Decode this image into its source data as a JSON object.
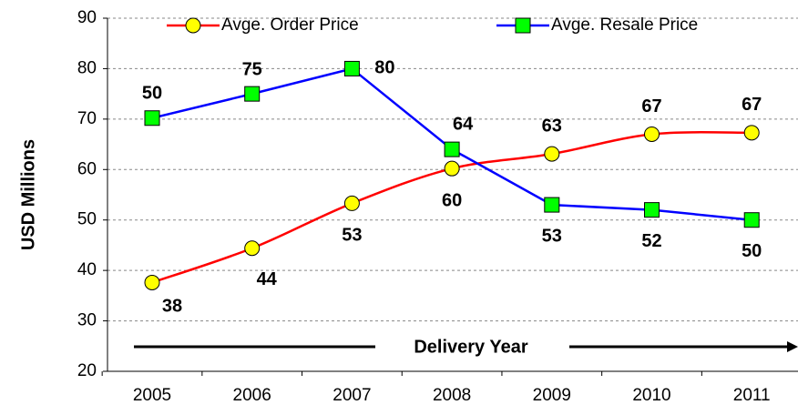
{
  "chart_data": {
    "type": "line",
    "y_label": "USD Millions",
    "x_label": "Delivery Year",
    "categories": [
      "2005",
      "2006",
      "2007",
      "2008",
      "2009",
      "2010",
      "2011"
    ],
    "series": [
      {
        "name": "Avge. Order Price",
        "color": "#ff0000",
        "marker_color": "#ffff00",
        "marker": "circle",
        "smooth": true,
        "values": [
          37.6,
          44.4,
          53.3,
          60.2,
          63.1,
          67.0,
          67.3
        ],
        "value_labels": [
          "38",
          "44",
          "53",
          "60",
          "63",
          "67",
          "67"
        ]
      },
      {
        "name": "Avge. Resale Price",
        "color": "#0000ff",
        "marker_color": "#00ff00",
        "marker": "square",
        "smooth": false,
        "values": [
          70.2,
          75,
          80,
          64,
          53,
          52,
          50
        ],
        "value_labels": [
          null,
          "75",
          "80",
          "64",
          "53",
          "52",
          "50"
        ]
      }
    ],
    "annotations": [
      "50"
    ],
    "ylim": [
      20,
      90
    ],
    "yticks": [
      20,
      30,
      40,
      50,
      60,
      70,
      80,
      90
    ],
    "grid": true,
    "legend": "top"
  }
}
